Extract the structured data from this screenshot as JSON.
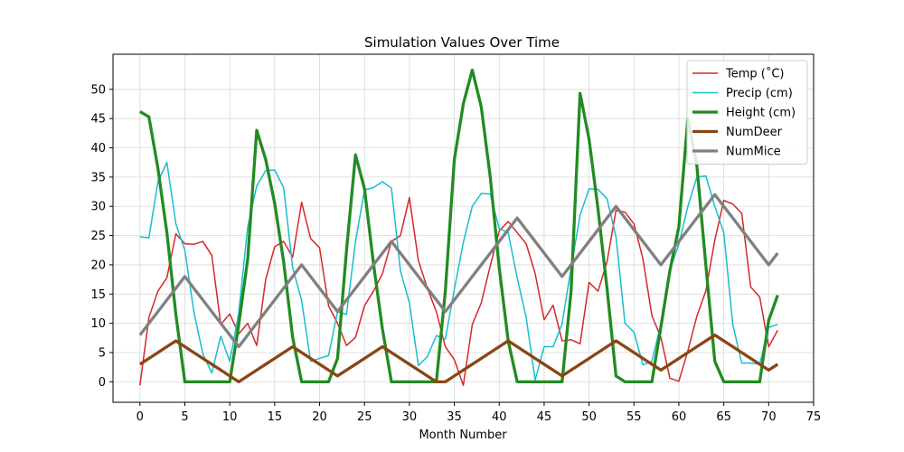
{
  "chart_data": {
    "type": "line",
    "title": "Simulation Values Over Time",
    "xlabel": "Month Number",
    "ylabel": "",
    "xlim": [
      -3,
      75
    ],
    "ylim": [
      -3.5,
      56
    ],
    "xticks": [
      0,
      5,
      10,
      15,
      20,
      25,
      30,
      35,
      40,
      45,
      50,
      55,
      60,
      65,
      70,
      75
    ],
    "yticks": [
      0,
      5,
      10,
      15,
      20,
      25,
      30,
      35,
      40,
      45,
      50
    ],
    "grid": true,
    "legend_position": "top-right",
    "series": [
      {
        "name": "Temp ($^\\circ$C)",
        "display_name": "Temp (˚C)",
        "color": "#d62728",
        "width": 1.5,
        "values": [
          -0.6,
          11,
          15.5,
          17.8,
          25.3,
          23.6,
          23.5,
          24,
          21.6,
          9.8,
          11.6,
          8.2,
          10,
          6.2,
          17.5,
          23.1,
          24,
          21.3,
          30.7,
          24.5,
          22.9,
          13,
          10,
          6.2,
          7.6,
          13,
          15.5,
          18.5,
          24,
          25,
          31.5,
          20.7,
          16,
          12,
          6,
          3.8,
          -0.6,
          9.8,
          13.5,
          19.8,
          25.8,
          27.4,
          25.5,
          23.6,
          18.5,
          10.6,
          13.1,
          7,
          7.2,
          6.5,
          17,
          15.5,
          20.5,
          29.3,
          29,
          27,
          21,
          11.3,
          7.6,
          0.6,
          0.1,
          5.3,
          11.2,
          15.5,
          24.2,
          31,
          30.4,
          28.8,
          16.2,
          14.5,
          6,
          8.8
        ]
      },
      {
        "name": "Precip (cm)",
        "display_name": "Precip (cm)",
        "color": "#17becf",
        "width": 1.5,
        "values": [
          24.8,
          24.6,
          34.2,
          37.5,
          27,
          22.5,
          12,
          4.8,
          1.5,
          7.8,
          3.5,
          11.8,
          26.5,
          33.5,
          36.1,
          36.2,
          33.2,
          19.5,
          13.9,
          3.5,
          4,
          4.5,
          12,
          11.5,
          24,
          32.8,
          33.2,
          34.2,
          33.1,
          19,
          13.5,
          2.8,
          4.3,
          7.9,
          7.3,
          15.8,
          23.8,
          30,
          32.2,
          32.1,
          26.2,
          25.5,
          17.8,
          11,
          0.3,
          6,
          6,
          9.9,
          19.5,
          28.5,
          33,
          32.9,
          31.3,
          24.8,
          10,
          8.5,
          2.9,
          3.5,
          9.9,
          19.1,
          23.5,
          30,
          35,
          35.2,
          30,
          25.5,
          9.8,
          3.2,
          3.2,
          3,
          9.3,
          9.8
        ]
      },
      {
        "name": "Height (cm)",
        "display_name": "Height (cm)",
        "color": "#228b22",
        "width": 3.3,
        "values": [
          46.2,
          45.3,
          36.5,
          25.5,
          11.5,
          0,
          0,
          0,
          0,
          0,
          0,
          9.8,
          21,
          43,
          38,
          30.5,
          20.5,
          7.6,
          0,
          0,
          0,
          0,
          4,
          22.5,
          38.8,
          33,
          20.2,
          9,
          0,
          0,
          0,
          0,
          0,
          0,
          15.5,
          38,
          47.5,
          53.3,
          47,
          35,
          19.5,
          7,
          0,
          0,
          0,
          0,
          0,
          0,
          15.5,
          49.3,
          41.5,
          29.5,
          16,
          1,
          0,
          0,
          0,
          0,
          9.4,
          19,
          26.5,
          45,
          37,
          20,
          3.5,
          0,
          0,
          0,
          0,
          0,
          10.5,
          14.8
        ]
      },
      {
        "name": "NumDeer",
        "display_name": "NumDeer",
        "color": "#8b4513",
        "width": 3.3,
        "values": [
          3,
          4,
          5,
          6,
          7,
          6,
          5,
          4,
          3,
          2,
          1,
          0,
          1,
          2,
          3,
          4,
          5,
          6,
          5,
          4,
          3,
          2,
          1,
          2,
          3,
          4,
          5,
          6,
          5,
          4,
          3,
          2,
          1,
          0,
          0,
          1,
          2,
          3,
          4,
          5,
          6,
          7,
          6,
          5,
          4,
          3,
          2,
          1,
          2,
          3,
          4,
          5,
          6,
          7,
          6,
          5,
          4,
          3,
          2,
          3,
          4,
          5,
          6,
          7,
          8,
          7,
          6,
          5,
          4,
          3,
          2,
          3
        ]
      },
      {
        "name": "NumMice",
        "display_name": "NumMice",
        "color": "#808080",
        "width": 3.3,
        "values": [
          8,
          10,
          12,
          14,
          16,
          18,
          16,
          14,
          12,
          10,
          8,
          6,
          8,
          10,
          12,
          14,
          16,
          18,
          20,
          18,
          16,
          14,
          12,
          14,
          16,
          18,
          20,
          22,
          24,
          22,
          20,
          18,
          16,
          14,
          12,
          14,
          16,
          18,
          20,
          22,
          24,
          26,
          28,
          26,
          24,
          22,
          20,
          18,
          20,
          22,
          24,
          26,
          28,
          30,
          28,
          26,
          24,
          22,
          20,
          22,
          24,
          26,
          28,
          30,
          32,
          30,
          28,
          26,
          24,
          22,
          20,
          22
        ]
      }
    ]
  }
}
